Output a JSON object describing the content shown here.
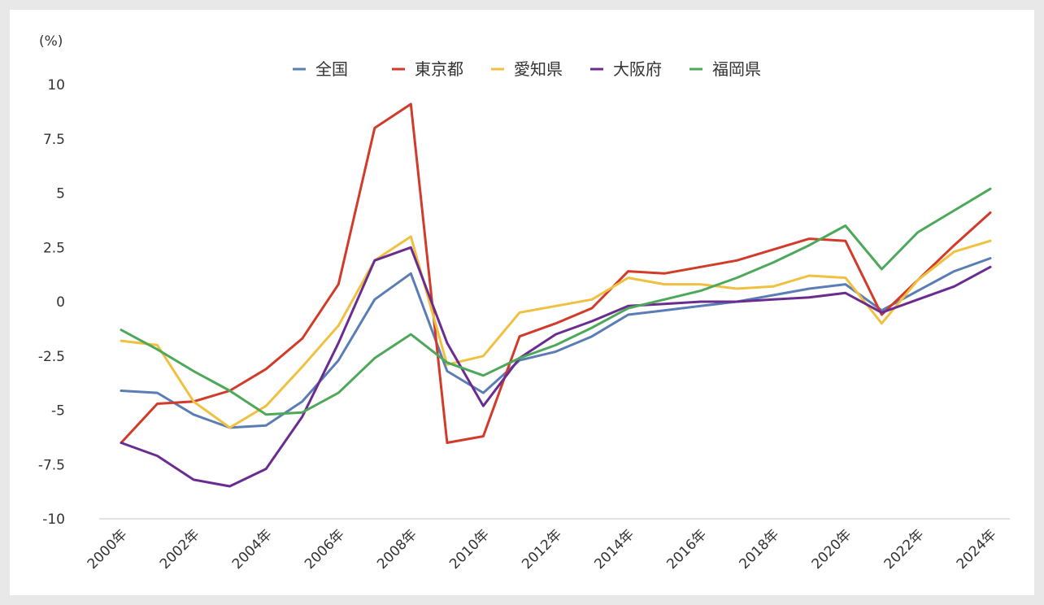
{
  "chart_data": {
    "type": "line",
    "title": "",
    "unit_label": "(%)",
    "xlabel": "",
    "ylabel": "",
    "ylim": [
      -10,
      10
    ],
    "yticks": [
      10,
      7.5,
      5,
      2.5,
      0,
      -2.5,
      -5,
      -7.5,
      -10
    ],
    "ytick_labels": [
      "10",
      "7.5",
      "5",
      "2.5",
      "0",
      "-2.5",
      "-5",
      "-7.5",
      "-10"
    ],
    "x": [
      2000,
      2001,
      2002,
      2003,
      2004,
      2005,
      2006,
      2007,
      2008,
      2009,
      2010,
      2011,
      2012,
      2013,
      2014,
      2015,
      2016,
      2017,
      2018,
      2019,
      2020,
      2021,
      2022,
      2023,
      2024
    ],
    "xtick_labels": [
      "2000年",
      "2002年",
      "2004年",
      "2006年",
      "2008年",
      "2010年",
      "2012年",
      "2014年",
      "2016年",
      "2018年",
      "2020年",
      "2022年",
      "2024年"
    ],
    "xtick_years": [
      2000,
      2002,
      2004,
      2006,
      2008,
      2010,
      2012,
      2014,
      2016,
      2018,
      2020,
      2022,
      2024
    ],
    "legend_position": "top-center",
    "grid": false,
    "series": [
      {
        "name": "全国",
        "color": "#5b7db5",
        "values": [
          -4.1,
          -4.2,
          -5.2,
          -5.8,
          -5.7,
          -4.6,
          -2.7,
          0.1,
          1.3,
          -3.2,
          -4.2,
          -2.7,
          -2.3,
          -1.6,
          -0.6,
          -0.4,
          -0.2,
          0.0,
          0.3,
          0.6,
          0.8,
          -0.4,
          0.5,
          1.4,
          2.0
        ]
      },
      {
        "name": "東京都",
        "color": "#d23a2a",
        "values": [
          -6.5,
          -4.7,
          -4.6,
          -4.1,
          -3.1,
          -1.7,
          0.8,
          8.0,
          9.1,
          -6.5,
          -6.2,
          -1.6,
          -1.0,
          -0.3,
          1.4,
          1.3,
          1.6,
          1.9,
          2.4,
          2.9,
          2.8,
          -0.6,
          1.0,
          2.6,
          4.1
        ]
      },
      {
        "name": "愛知県",
        "color": "#f0c140",
        "values": [
          -1.8,
          -2.0,
          -4.6,
          -5.8,
          -4.8,
          -3.0,
          -1.1,
          1.9,
          3.0,
          -2.9,
          -2.5,
          -0.5,
          -0.2,
          0.1,
          1.1,
          0.8,
          0.8,
          0.6,
          0.7,
          1.2,
          1.1,
          -1.0,
          1.0,
          2.3,
          2.8
        ]
      },
      {
        "name": "大阪府",
        "color": "#6a2d8f",
        "values": [
          -6.5,
          -7.1,
          -8.2,
          -8.5,
          -7.7,
          -5.3,
          -1.9,
          1.9,
          2.5,
          -1.9,
          -4.8,
          -2.6,
          -1.5,
          -0.9,
          -0.2,
          -0.1,
          0.0,
          0.0,
          0.1,
          0.2,
          0.4,
          -0.5,
          0.1,
          0.7,
          1.6
        ]
      },
      {
        "name": "福岡県",
        "color": "#4ea85a",
        "values": [
          -1.3,
          -2.2,
          -3.2,
          -4.1,
          -5.2,
          -5.1,
          -4.2,
          -2.6,
          -1.5,
          -2.8,
          -3.4,
          -2.6,
          -2.0,
          -1.2,
          -0.3,
          0.1,
          0.5,
          1.1,
          1.8,
          2.6,
          3.5,
          1.5,
          3.2,
          4.2,
          5.2
        ]
      }
    ]
  }
}
